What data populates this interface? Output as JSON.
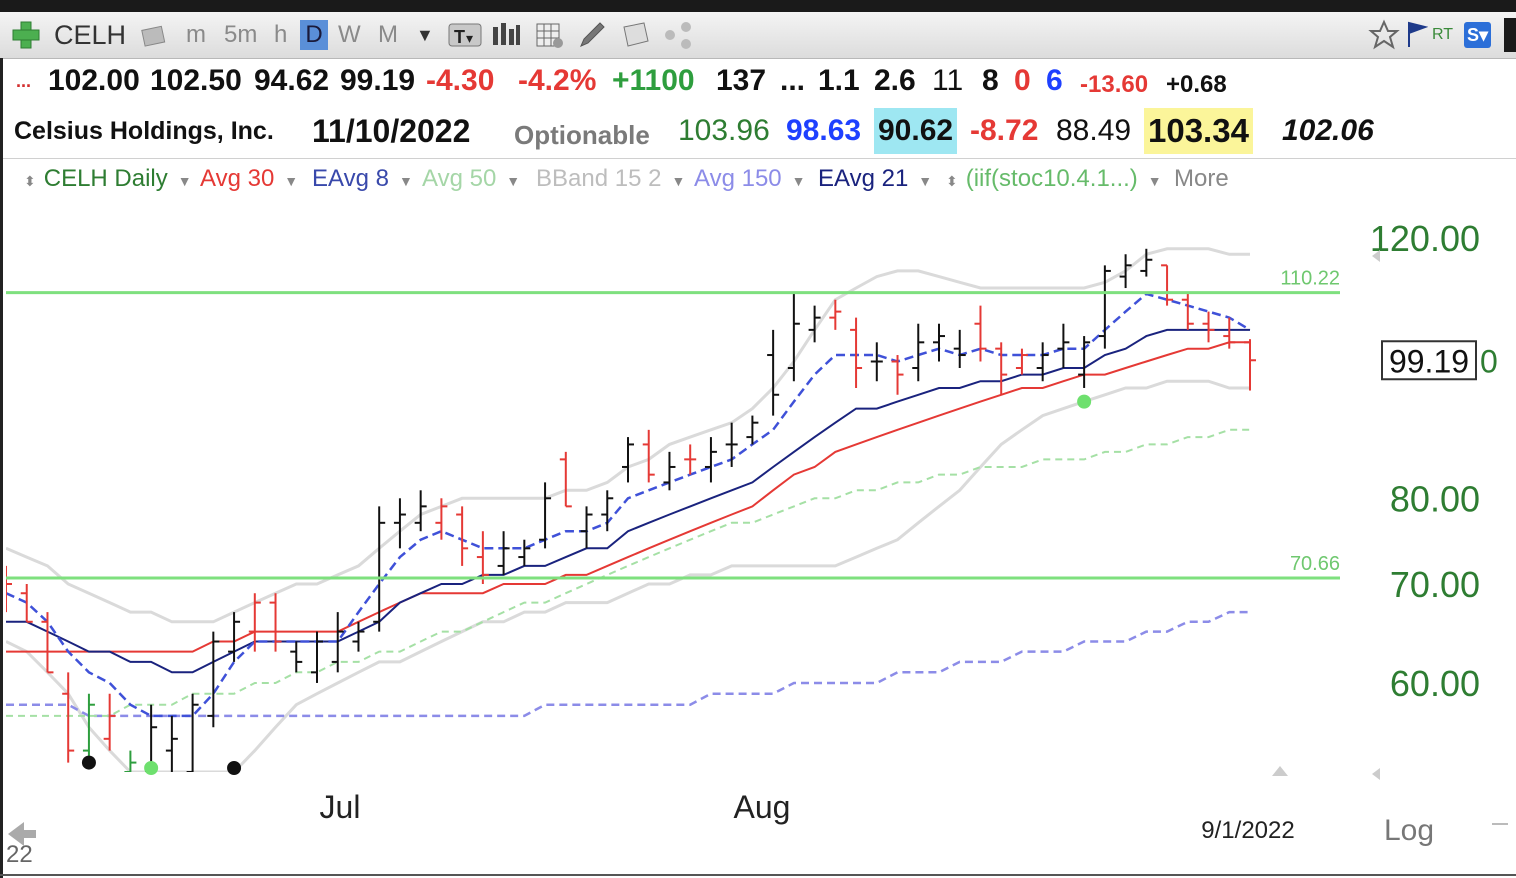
{
  "toolbar": {
    "symbol": "CELH",
    "timeframes": [
      "m",
      "5m",
      "h",
      "D",
      "W",
      "M"
    ],
    "active_timeframe": "D",
    "rt_label": "RT",
    "sv_label": "S▾"
  },
  "quote_row1": {
    "open": "102.00",
    "high": "102.50",
    "low": "94.62",
    "close": "99.19",
    "change": "-4.30",
    "change_pct": "-4.2%",
    "volume_change": "+1100",
    "v1": "137",
    "ellipsis": "...",
    "v2": "1.1",
    "v3": "2.6",
    "v4": "11",
    "v5": "8",
    "v6": "0",
    "v7": "6",
    "v8": "-13.60",
    "v9": "+0.68"
  },
  "quote_row2": {
    "company": "Celsius Holdings, Inc.",
    "date": "11/10/2022",
    "optionable": "Optionable",
    "v1": "103.96",
    "v2": "98.63",
    "v3": "90.62",
    "v4": "-8.72",
    "v5": "88.49",
    "v6": "103.34",
    "v7": "102.06"
  },
  "indicators": [
    {
      "label": "CELH Daily",
      "color": "#2e7d32"
    },
    {
      "label": "Avg 30",
      "color": "#e53935"
    },
    {
      "label": "EAvg 8",
      "color": "#3949ab"
    },
    {
      "label": "Avg 50",
      "color": "#a5d6a7"
    },
    {
      "label": "BBand 15 2",
      "color": "#bdbdbd"
    },
    {
      "label": "Avg 150",
      "color": "#8c8ce8"
    },
    {
      "label": "EAvg 21",
      "color": "#1a237e"
    },
    {
      "label": "(iif(stoc10.4.1...)",
      "color": "#66bb6a"
    },
    {
      "label": "More",
      "color": "#888888"
    }
  ],
  "chart_data": {
    "type": "bar",
    "symbol": "CELH",
    "y_ticks": [
      120,
      80,
      70,
      60
    ],
    "y_tick_labels": [
      "120.00",
      "80.00",
      "70.00",
      "60.00"
    ],
    "log_scale": true,
    "log_label": "Log",
    "x_labels": [
      "Jul",
      "Aug",
      "9/1/2022"
    ],
    "year_fragment": "22",
    "last_price_label": "99.19",
    "last_price_suffix": "0",
    "hlines": [
      {
        "value": 110.22,
        "label": "110.22",
        "color": "#7ee07e"
      },
      {
        "value": 70.66,
        "label": "70.66",
        "color": "#7ee07e"
      }
    ],
    "ohlc": [
      [
        70,
        72,
        67,
        70,
        "r"
      ],
      [
        69,
        70,
        66,
        66,
        "r"
      ],
      [
        66,
        67,
        61,
        61,
        "r"
      ],
      [
        59,
        61,
        53,
        54,
        "r"
      ],
      [
        54,
        59,
        53,
        58,
        "g"
      ],
      [
        55,
        59,
        54,
        57,
        "r"
      ],
      [
        52,
        54,
        51,
        53,
        "g"
      ],
      [
        52,
        58,
        51,
        56,
        "k"
      ],
      [
        54,
        57,
        52,
        55,
        "k"
      ],
      [
        52,
        59,
        51,
        58,
        "k"
      ],
      [
        57,
        65,
        56,
        64,
        "k"
      ],
      [
        63,
        67,
        62,
        66,
        "k"
      ],
      [
        65,
        69,
        63,
        68,
        "r"
      ],
      [
        68,
        69,
        63,
        64,
        "r"
      ],
      [
        63,
        64,
        61,
        62,
        "k"
      ],
      [
        61,
        65,
        60,
        64,
        "k"
      ],
      [
        62,
        67,
        61,
        65,
        "k"
      ],
      [
        64,
        66,
        63,
        65,
        "k"
      ],
      [
        66,
        79,
        65,
        77,
        "k"
      ],
      [
        77,
        80,
        74,
        78,
        "k"
      ],
      [
        77,
        81,
        76,
        79,
        "k"
      ],
      [
        77,
        80,
        75,
        79,
        "r"
      ],
      [
        78,
        79,
        72,
        74,
        "r"
      ],
      [
        73,
        76,
        70,
        71,
        "r"
      ],
      [
        72,
        76,
        71,
        74,
        "k"
      ],
      [
        73,
        75,
        72,
        74,
        "k"
      ],
      [
        75,
        82,
        74,
        80,
        "k"
      ],
      [
        85,
        86,
        79,
        79,
        "r"
      ],
      [
        76,
        79,
        74,
        78,
        "k"
      ],
      [
        78,
        81,
        76,
        80,
        "k"
      ],
      [
        84,
        88,
        82,
        87,
        "k"
      ],
      [
        87,
        89,
        82,
        83,
        "r"
      ],
      [
        82,
        86,
        81,
        84,
        "k"
      ],
      [
        85,
        87,
        83,
        85,
        "r"
      ],
      [
        84,
        88,
        82,
        86,
        "k"
      ],
      [
        87,
        90,
        84,
        87,
        "k"
      ],
      [
        88,
        91,
        87,
        90,
        "k"
      ],
      [
        100,
        104,
        91,
        94,
        "k"
      ],
      [
        98,
        110,
        96,
        105,
        "k"
      ],
      [
        104,
        108,
        102,
        106,
        "k"
      ],
      [
        106,
        109,
        104,
        107,
        "r"
      ],
      [
        104,
        106,
        95,
        98,
        "r"
      ],
      [
        99,
        102,
        96,
        99,
        "k"
      ],
      [
        99,
        100,
        94,
        97,
        "r"
      ],
      [
        98,
        105,
        96,
        102,
        "k"
      ],
      [
        102,
        105,
        99,
        103,
        "k"
      ],
      [
        101,
        104,
        98,
        100,
        "k"
      ],
      [
        105,
        108,
        99,
        101,
        "r"
      ],
      [
        101,
        102,
        94,
        97,
        "r"
      ],
      [
        98,
        101,
        97,
        100,
        "r"
      ],
      [
        98,
        102,
        96,
        100,
        "k"
      ],
      [
        101,
        105,
        98,
        102,
        "k"
      ],
      [
        97,
        103,
        95,
        102,
        "k"
      ],
      [
        103,
        115,
        101,
        114,
        "k"
      ],
      [
        113,
        117,
        111,
        115,
        "k"
      ],
      [
        114,
        118,
        113,
        116,
        "k"
      ],
      [
        115,
        115,
        108,
        109,
        "r"
      ],
      [
        109,
        110,
        104,
        105,
        "r"
      ],
      [
        105,
        107,
        102,
        104,
        "r"
      ],
      [
        103,
        106,
        101,
        102,
        "r"
      ],
      [
        102,
        102.5,
        94.62,
        99.19,
        "r"
      ]
    ],
    "sma30": [
      63,
      63,
      63,
      63,
      63,
      63,
      63,
      63,
      63,
      63,
      64,
      64,
      65,
      65,
      65,
      65,
      65,
      66,
      67,
      68,
      69,
      69,
      69,
      69,
      70,
      70,
      70,
      71,
      71,
      72,
      73,
      74,
      75,
      76,
      77,
      78,
      79,
      81,
      83,
      84,
      86,
      87,
      88,
      89,
      90,
      91,
      92,
      93,
      94,
      95,
      95,
      96,
      97,
      97,
      98,
      99,
      100,
      101,
      101,
      102,
      102
    ],
    "ema8": [
      69,
      68,
      66,
      63,
      61,
      60,
      58,
      57,
      57,
      57,
      59,
      62,
      64,
      64,
      64,
      64,
      64,
      67,
      70,
      73,
      75,
      76,
      75,
      74,
      74,
      74,
      75,
      76,
      76,
      77,
      80,
      81,
      82,
      83,
      84,
      85,
      87,
      89,
      93,
      97,
      100,
      100,
      100,
      99,
      100,
      101,
      100,
      101,
      100,
      100,
      100,
      101,
      101,
      104,
      107,
      110,
      109,
      108,
      107,
      106,
      104
    ],
    "ema21": [
      66,
      66,
      65,
      64,
      63,
      63,
      62,
      62,
      61,
      61,
      62,
      63,
      64,
      64,
      64,
      64,
      64,
      65,
      66,
      68,
      69,
      70,
      70,
      71,
      71,
      72,
      72,
      73,
      74,
      74,
      76,
      77,
      78,
      79,
      80,
      81,
      82,
      84,
      86,
      88,
      90,
      92,
      92,
      93,
      94,
      95,
      95,
      96,
      96,
      97,
      97,
      98,
      98,
      100,
      101,
      103,
      104,
      104,
      104,
      104,
      104
    ],
    "sma50": [
      57,
      57,
      57,
      57,
      57,
      57,
      58,
      58,
      58,
      59,
      59,
      59,
      60,
      60,
      61,
      61,
      62,
      62,
      63,
      63,
      64,
      65,
      65,
      66,
      67,
      68,
      68,
      69,
      70,
      71,
      72,
      73,
      74,
      75,
      76,
      77,
      77,
      78,
      79,
      80,
      80,
      81,
      81,
      82,
      82,
      83,
      83,
      84,
      84,
      84,
      85,
      85,
      85,
      86,
      86,
      87,
      87,
      88,
      88,
      89,
      89
    ],
    "sma150": [
      58,
      58,
      58,
      58,
      57,
      57,
      57,
      57,
      57,
      57,
      57,
      57,
      57,
      57,
      57,
      57,
      57,
      57,
      57,
      57,
      57,
      57,
      57,
      57,
      57,
      57,
      58,
      58,
      58,
      58,
      58,
      58,
      58,
      58,
      59,
      59,
      59,
      59,
      60,
      60,
      60,
      60,
      60,
      61,
      61,
      61,
      62,
      62,
      62,
      63,
      63,
      63,
      64,
      64,
      64,
      65,
      65,
      66,
      66,
      67,
      67
    ],
    "bb_upper": [
      74,
      73,
      72,
      70,
      69,
      68,
      67,
      67,
      66,
      66,
      66,
      67,
      68,
      69,
      70,
      70,
      71,
      72,
      74,
      76,
      78,
      79,
      80,
      80,
      80,
      80,
      80,
      81,
      81,
      82,
      84,
      85,
      87,
      88,
      89,
      90,
      92,
      95,
      99,
      104,
      109,
      111,
      113,
      114,
      114,
      113,
      112,
      111,
      111,
      111,
      111,
      111,
      111,
      112,
      114,
      117,
      118,
      118,
      118,
      117,
      117
    ],
    "bb_lower": [
      64,
      63,
      61,
      59,
      56,
      54,
      52,
      51,
      51,
      51,
      51,
      52,
      54,
      56,
      58,
      59,
      60,
      61,
      62,
      62,
      63,
      64,
      65,
      66,
      66,
      67,
      67,
      68,
      68,
      68,
      69,
      70,
      70,
      71,
      71,
      72,
      72,
      72,
      72,
      72,
      72,
      73,
      74,
      75,
      77,
      79,
      81,
      84,
      87,
      89,
      91,
      92,
      93,
      94,
      95,
      95,
      96,
      96,
      96,
      95,
      95
    ],
    "stoch_dots": [
      {
        "i": 4,
        "value": 53,
        "color": "#111111"
      },
      {
        "i": 7,
        "value": 52,
        "color": "#6ee06e"
      },
      {
        "i": 11,
        "value": 52,
        "color": "#111111"
      },
      {
        "i": 52,
        "value": 93,
        "color": "#6ee06e"
      }
    ]
  }
}
